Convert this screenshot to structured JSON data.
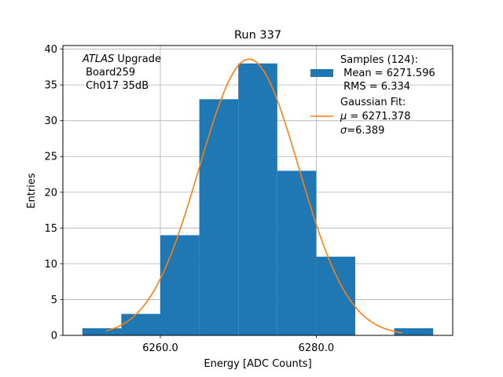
{
  "chart_data": {
    "type": "bar",
    "title": "Run 337",
    "xlabel": "Energy [ADC Counts]",
    "ylabel": "Entries",
    "xlim": [
      6247.5,
      6297.5
    ],
    "ylim": [
      0,
      40.5
    ],
    "grid": true,
    "x_ticks": [
      6260,
      6280
    ],
    "x_tick_labels": [
      "6260.0",
      "6280.0"
    ],
    "y_ticks": [
      0,
      5,
      10,
      15,
      20,
      25,
      30,
      35,
      40
    ],
    "y_tick_labels": [
      "0",
      "5",
      "10",
      "15",
      "20",
      "25",
      "30",
      "35",
      "40"
    ],
    "bin_edges": [
      6250,
      6255,
      6260,
      6265,
      6270,
      6275,
      6280,
      6285,
      6290,
      6295
    ],
    "values": [
      1,
      3,
      14,
      33,
      38,
      23,
      11,
      0,
      1
    ],
    "bar_color": "#1f77b4",
    "fit": {
      "name": "Gaussian Fit",
      "amplitude": 38.6,
      "mu": 6271.378,
      "sigma": 6.389,
      "x_range": [
        6253,
        6291
      ],
      "color": "#ff7f0e"
    },
    "annotation": {
      "italic_word": "ATLAS",
      "line1_rest": " Upgrade",
      "line2": " Board259",
      "line3": " Ch017 35dB"
    },
    "legend": {
      "location": "top-right",
      "hist_label_line1": "Samples (124):",
      "hist_label_line2": " Mean = 6271.596",
      "hist_label_line3": " RMS = 6.334",
      "fit_label_line1": "Gaussian Fit:",
      "fit_label_line2_symbol": "μ",
      "fit_label_line2_rest": " = 6271.378",
      "fit_label_line3_symbol": "σ",
      "fit_label_line3_rest": "=6.389"
    }
  }
}
